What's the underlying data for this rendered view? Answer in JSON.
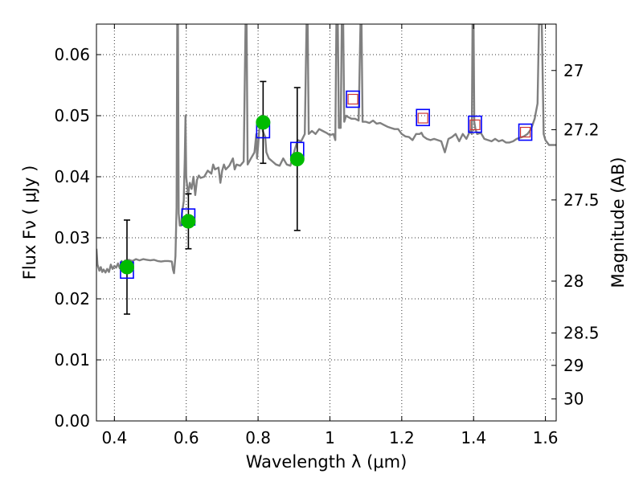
{
  "chart_data": {
    "type": "scatter",
    "xlabel": "Wavelength  λ (μm)",
    "ylabel": "Flux  Fν  ( μJy )",
    "y2label": "Magnitude (AB)",
    "xlim": [
      0.35,
      1.63
    ],
    "ylim": [
      0.0,
      0.065
    ],
    "grid": true,
    "x_ticks": [
      0.4,
      0.6,
      0.8,
      1.0,
      1.2,
      1.4,
      1.6
    ],
    "x_tick_labels": [
      "0.4",
      "0.6",
      "0.8",
      "1",
      "1.2",
      "1.4",
      "1.6"
    ],
    "y_ticks": [
      0.0,
      0.01,
      0.02,
      0.03,
      0.04,
      0.05,
      0.06
    ],
    "y_tick_labels": [
      "0.00",
      "0.01",
      "0.02",
      "0.03",
      "0.04",
      "0.05",
      "0.06"
    ],
    "y2_ticks": [
      {
        "label": "27",
        "flux": 0.0574
      },
      {
        "label": "27.2",
        "flux": 0.0477
      },
      {
        "label": "27.5",
        "flux": 0.0362
      },
      {
        "label": "28",
        "flux": 0.0229
      },
      {
        "label": "28.5",
        "flux": 0.0144
      },
      {
        "label": "29",
        "flux": 0.0091
      },
      {
        "label": "30",
        "flux": 0.0036
      }
    ],
    "model_spectrum": {
      "color": "#808080",
      "points": [
        [
          0.35,
          0.0282
        ],
        [
          0.353,
          0.0256
        ],
        [
          0.358,
          0.0246
        ],
        [
          0.362,
          0.0252
        ],
        [
          0.366,
          0.0244
        ],
        [
          0.37,
          0.0248
        ],
        [
          0.375,
          0.0243
        ],
        [
          0.38,
          0.0249
        ],
        [
          0.385,
          0.0244
        ],
        [
          0.39,
          0.0256
        ],
        [
          0.395,
          0.0249
        ],
        [
          0.4,
          0.0254
        ],
        [
          0.405,
          0.0251
        ],
        [
          0.41,
          0.0258
        ],
        [
          0.415,
          0.025
        ],
        [
          0.42,
          0.0262
        ],
        [
          0.425,
          0.0257
        ],
        [
          0.43,
          0.0263
        ],
        [
          0.435,
          0.0258
        ],
        [
          0.44,
          0.0264
        ],
        [
          0.45,
          0.0262
        ],
        [
          0.46,
          0.0265
        ],
        [
          0.47,
          0.0263
        ],
        [
          0.48,
          0.0265
        ],
        [
          0.49,
          0.0264
        ],
        [
          0.5,
          0.0263
        ],
        [
          0.51,
          0.0264
        ],
        [
          0.52,
          0.0262
        ],
        [
          0.53,
          0.0261
        ],
        [
          0.54,
          0.0262
        ],
        [
          0.55,
          0.0262
        ],
        [
          0.56,
          0.0261
        ],
        [
          0.563,
          0.0248
        ],
        [
          0.566,
          0.0242
        ],
        [
          0.57,
          0.027
        ],
        [
          0.573,
          0.035
        ],
        [
          0.575,
          0.065
        ],
        [
          0.577,
          0.065
        ],
        [
          0.579,
          0.034
        ],
        [
          0.582,
          0.032
        ],
        [
          0.586,
          0.032
        ],
        [
          0.588,
          0.034
        ],
        [
          0.593,
          0.036
        ],
        [
          0.596,
          0.043
        ],
        [
          0.598,
          0.05
        ],
        [
          0.6,
          0.04
        ],
        [
          0.605,
          0.037
        ],
        [
          0.61,
          0.039
        ],
        [
          0.615,
          0.038
        ],
        [
          0.62,
          0.04
        ],
        [
          0.625,
          0.037
        ],
        [
          0.63,
          0.0395
        ],
        [
          0.635,
          0.0402
        ],
        [
          0.64,
          0.0398
        ],
        [
          0.65,
          0.04
        ],
        [
          0.66,
          0.041
        ],
        [
          0.67,
          0.0405
        ],
        [
          0.675,
          0.042
        ],
        [
          0.68,
          0.0412
        ],
        [
          0.69,
          0.0415
        ],
        [
          0.695,
          0.039
        ],
        [
          0.7,
          0.041
        ],
        [
          0.705,
          0.042
        ],
        [
          0.71,
          0.0412
        ],
        [
          0.72,
          0.0418
        ],
        [
          0.73,
          0.043
        ],
        [
          0.735,
          0.0412
        ],
        [
          0.74,
          0.042
        ],
        [
          0.75,
          0.0418
        ],
        [
          0.76,
          0.0425
        ],
        [
          0.765,
          0.065
        ],
        [
          0.768,
          0.065
        ],
        [
          0.771,
          0.042
        ],
        [
          0.78,
          0.043
        ],
        [
          0.79,
          0.044
        ],
        [
          0.795,
          0.047
        ],
        [
          0.797,
          0.043
        ],
        [
          0.8,
          0.045
        ],
        [
          0.805,
          0.049
        ],
        [
          0.81,
          0.05
        ],
        [
          0.813,
          0.0475
        ],
        [
          0.82,
          0.0465
        ],
        [
          0.823,
          0.044
        ],
        [
          0.83,
          0.043
        ],
        [
          0.84,
          0.0425
        ],
        [
          0.85,
          0.042
        ],
        [
          0.86,
          0.0418
        ],
        [
          0.87,
          0.043
        ],
        [
          0.88,
          0.042
        ],
        [
          0.89,
          0.0418
        ],
        [
          0.9,
          0.044
        ],
        [
          0.91,
          0.046
        ],
        [
          0.92,
          0.0458
        ],
        [
          0.93,
          0.047
        ],
        [
          0.935,
          0.065
        ],
        [
          0.938,
          0.065
        ],
        [
          0.941,
          0.047
        ],
        [
          0.95,
          0.0475
        ],
        [
          0.96,
          0.047
        ],
        [
          0.97,
          0.0478
        ],
        [
          0.98,
          0.0475
        ],
        [
          0.99,
          0.0472
        ],
        [
          1.0,
          0.0468
        ],
        [
          1.01,
          0.047
        ],
        [
          1.015,
          0.046
        ],
        [
          1.018,
          0.065
        ],
        [
          1.022,
          0.065
        ],
        [
          1.025,
          0.048
        ],
        [
          1.03,
          0.048
        ],
        [
          1.033,
          0.065
        ],
        [
          1.037,
          0.065
        ],
        [
          1.04,
          0.049
        ],
        [
          1.045,
          0.05
        ],
        [
          1.05,
          0.0498
        ],
        [
          1.06,
          0.0495
        ],
        [
          1.07,
          0.0495
        ],
        [
          1.08,
          0.0492
        ],
        [
          1.085,
          0.065
        ],
        [
          1.088,
          0.065
        ],
        [
          1.091,
          0.049
        ],
        [
          1.1,
          0.049
        ],
        [
          1.11,
          0.0488
        ],
        [
          1.12,
          0.0492
        ],
        [
          1.13,
          0.0487
        ],
        [
          1.14,
          0.0488
        ],
        [
          1.15,
          0.0485
        ],
        [
          1.16,
          0.0482
        ],
        [
          1.17,
          0.048
        ],
        [
          1.18,
          0.0478
        ],
        [
          1.19,
          0.0478
        ],
        [
          1.2,
          0.047
        ],
        [
          1.21,
          0.0466
        ],
        [
          1.22,
          0.0465
        ],
        [
          1.23,
          0.046
        ],
        [
          1.24,
          0.047
        ],
        [
          1.25,
          0.047
        ],
        [
          1.255,
          0.0472
        ],
        [
          1.26,
          0.0466
        ],
        [
          1.27,
          0.0462
        ],
        [
          1.28,
          0.046
        ],
        [
          1.29,
          0.0462
        ],
        [
          1.3,
          0.046
        ],
        [
          1.31,
          0.0458
        ],
        [
          1.32,
          0.044
        ],
        [
          1.33,
          0.0462
        ],
        [
          1.34,
          0.0465
        ],
        [
          1.35,
          0.047
        ],
        [
          1.36,
          0.0458
        ],
        [
          1.37,
          0.047
        ],
        [
          1.38,
          0.0462
        ],
        [
          1.39,
          0.0475
        ],
        [
          1.395,
          0.047
        ],
        [
          1.397,
          0.065
        ],
        [
          1.4,
          0.065
        ],
        [
          1.402,
          0.049
        ],
        [
          1.405,
          0.0478
        ],
        [
          1.41,
          0.047
        ],
        [
          1.42,
          0.0472
        ],
        [
          1.43,
          0.0462
        ],
        [
          1.44,
          0.046
        ],
        [
          1.45,
          0.0458
        ],
        [
          1.46,
          0.0462
        ],
        [
          1.47,
          0.0458
        ],
        [
          1.48,
          0.046
        ],
        [
          1.49,
          0.0456
        ],
        [
          1.5,
          0.0456
        ],
        [
          1.51,
          0.0458
        ],
        [
          1.52,
          0.0462
        ],
        [
          1.53,
          0.0464
        ],
        [
          1.54,
          0.0466
        ],
        [
          1.55,
          0.047
        ],
        [
          1.56,
          0.0478
        ],
        [
          1.57,
          0.0495
        ],
        [
          1.578,
          0.052
        ],
        [
          1.582,
          0.065
        ],
        [
          1.59,
          0.065
        ],
        [
          1.595,
          0.047
        ],
        [
          1.6,
          0.046
        ],
        [
          1.61,
          0.0452
        ],
        [
          1.62,
          0.0452
        ],
        [
          1.63,
          0.0452
        ]
      ]
    },
    "observed_photometry": {
      "color": "#00bb00",
      "points": [
        {
          "x": 0.435,
          "y": 0.0252,
          "err": 0.0077
        },
        {
          "x": 0.606,
          "y": 0.0327,
          "err": 0.0045
        },
        {
          "x": 0.814,
          "y": 0.0489,
          "err": 0.0067
        },
        {
          "x": 0.909,
          "y": 0.0429,
          "err": 0.0117
        }
      ]
    },
    "model_photometry": {
      "color": "#0000ff",
      "points": [
        {
          "x": 0.435,
          "y": 0.0247
        },
        {
          "x": 0.606,
          "y": 0.0334
        },
        {
          "x": 0.814,
          "y": 0.0477
        },
        {
          "x": 0.909,
          "y": 0.0443
        },
        {
          "x": 1.064,
          "y": 0.0527
        },
        {
          "x": 1.259,
          "y": 0.0497
        },
        {
          "x": 1.404,
          "y": 0.0486
        },
        {
          "x": 1.544,
          "y": 0.0473
        }
      ]
    },
    "upper_limit_markers": {
      "color": "#cc3333",
      "points": [
        {
          "x": 1.064,
          "y": 0.0527
        },
        {
          "x": 1.259,
          "y": 0.0496
        },
        {
          "x": 1.404,
          "y": 0.0485
        },
        {
          "x": 1.544,
          "y": 0.0473
        }
      ]
    }
  }
}
